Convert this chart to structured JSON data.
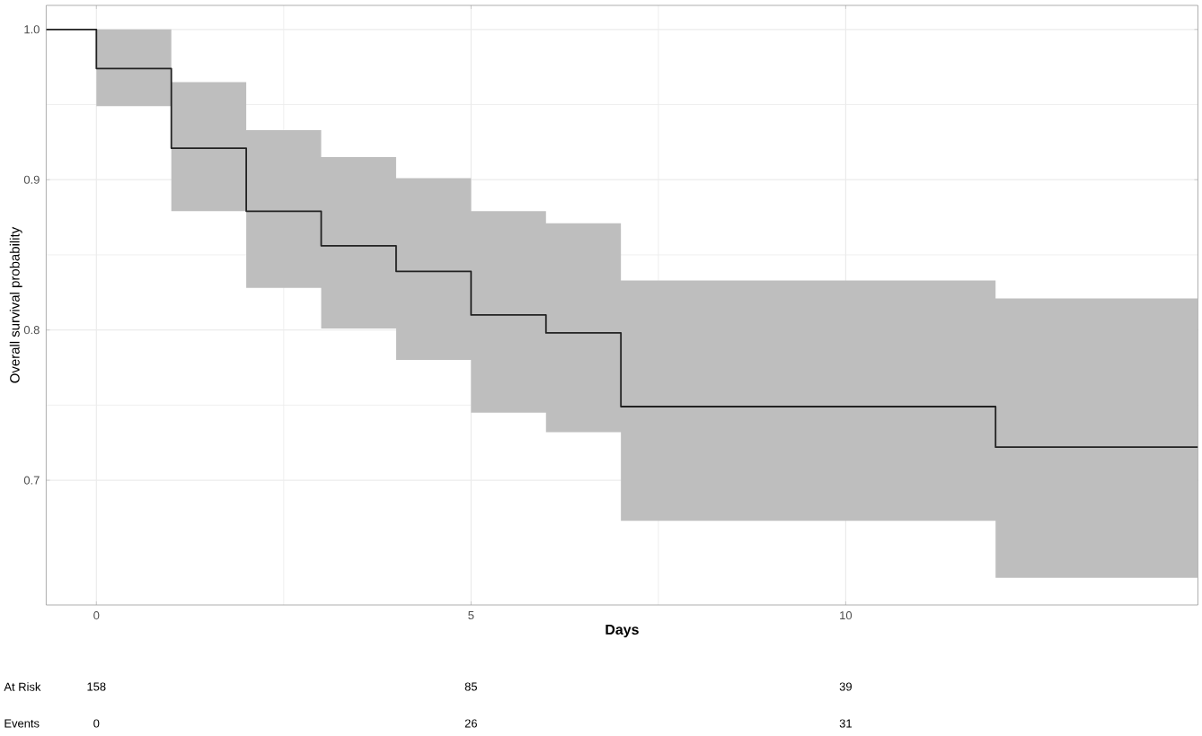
{
  "chart_data": {
    "type": "step",
    "xlabel": "Days",
    "ylabel": "Overall survival probability",
    "x": [
      -0.67,
      0,
      1,
      2,
      3,
      4,
      5,
      6,
      7,
      12,
      14.7
    ],
    "series": [
      {
        "color": "#222222",
        "values": [
          1.0,
          0.974,
          0.921,
          0.879,
          0.856,
          0.839,
          0.81,
          0.798,
          0.749,
          0.722,
          0.722
        ],
        "lower": [
          null,
          0.949,
          0.879,
          0.828,
          0.801,
          0.78,
          0.745,
          0.732,
          0.673,
          0.635,
          0.635
        ],
        "upper": [
          null,
          1.0,
          0.965,
          0.933,
          0.915,
          0.901,
          0.879,
          0.871,
          0.833,
          0.821,
          0.821
        ]
      }
    ],
    "xlim": [
      -0.67,
      14.7
    ],
    "ylim": [
      0.617,
      1.016
    ],
    "xticks": [
      0,
      5,
      10
    ],
    "yticks": [
      0.7,
      0.8,
      0.9,
      {
        "value": 1.0,
        "label": "1.0"
      }
    ],
    "grid": true,
    "line_style": "solid",
    "marker": "none",
    "annotations": [
      "At Risk",
      "158",
      "85",
      "39",
      "Events",
      "0",
      "26",
      "31"
    ]
  }
}
